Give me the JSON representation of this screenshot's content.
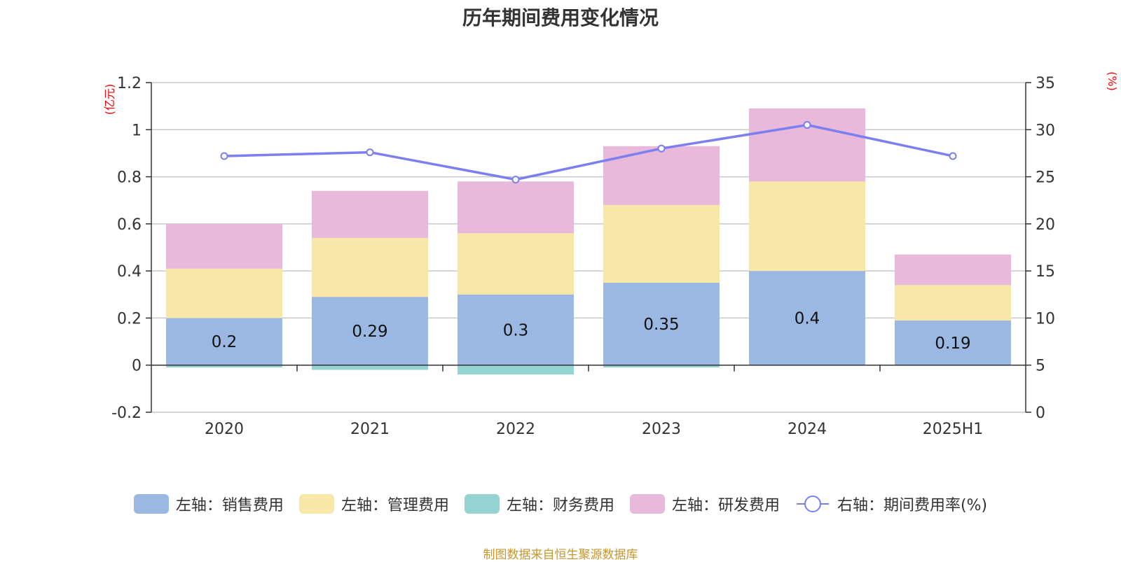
{
  "chart_data": {
    "type": "bar",
    "title": "历年期间费用变化情况",
    "left_unit": "(亿元)",
    "right_unit": "(%)",
    "categories": [
      "2020",
      "2021",
      "2022",
      "2023",
      "2024",
      "2025H1"
    ],
    "left_axis": {
      "min": -0.2,
      "max": 1.2,
      "ticks": [
        "-0.2",
        "0",
        "0.2",
        "0.4",
        "0.6",
        "0.8",
        "1",
        "1.2"
      ]
    },
    "right_axis": {
      "min": 0,
      "max": 35,
      "ticks": [
        "0",
        "5",
        "10",
        "15",
        "20",
        "25",
        "30",
        "35"
      ]
    },
    "series": [
      {
        "name": "左轴：销售费用",
        "axis": "left",
        "kind": "bar",
        "color": "#9bb8e3",
        "values": [
          0.2,
          0.29,
          0.3,
          0.35,
          0.4,
          0.19
        ],
        "labels": [
          "0.2",
          "0.29",
          "0.3",
          "0.35",
          "0.4",
          "0.19"
        ]
      },
      {
        "name": "左轴：管理费用",
        "axis": "left",
        "kind": "bar",
        "color": "#f8e8a8",
        "values": [
          0.21,
          0.25,
          0.26,
          0.33,
          0.38,
          0.15
        ]
      },
      {
        "name": "左轴：财务费用",
        "axis": "left",
        "kind": "bar",
        "color": "#96d4d4",
        "values": [
          -0.01,
          -0.02,
          -0.04,
          -0.01,
          0.0,
          0.0
        ]
      },
      {
        "name": "左轴：研发费用",
        "axis": "left",
        "kind": "bar",
        "color": "#e8b9da",
        "values": [
          0.19,
          0.2,
          0.22,
          0.25,
          0.31,
          0.13
        ]
      },
      {
        "name": "右轴：期间费用率(%)",
        "axis": "right",
        "kind": "line",
        "color": "#7b7ff0",
        "values": [
          27.2,
          27.6,
          24.7,
          28.0,
          30.5,
          27.2
        ]
      }
    ],
    "grid": true,
    "legend_position": "bottom"
  },
  "source_note": "制图数据来自恒生聚源数据库"
}
